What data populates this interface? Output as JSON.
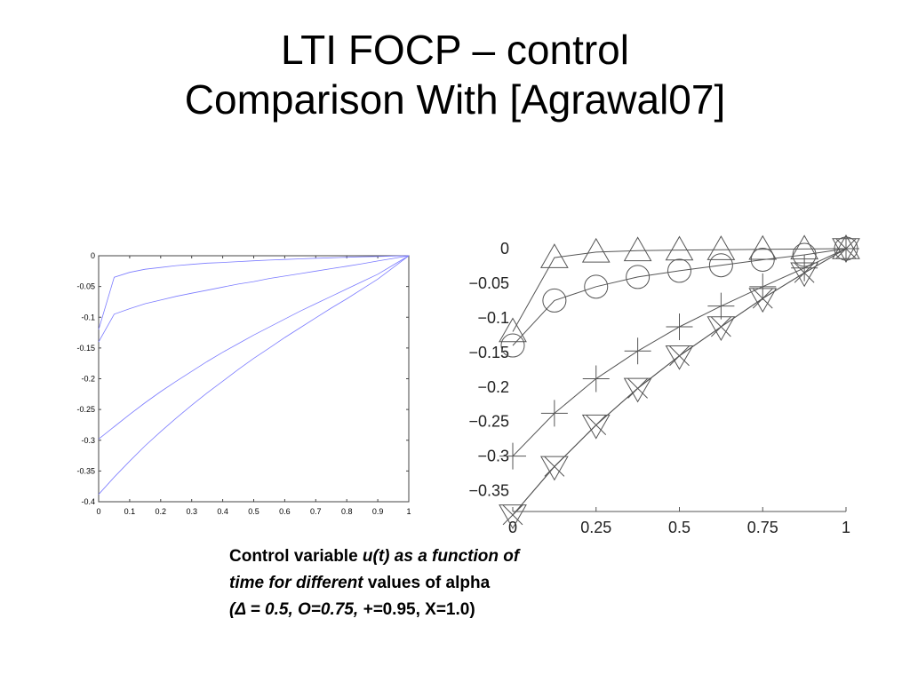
{
  "slide": {
    "title_line1": "LTI FOCP – control",
    "title_line2": "Comparison With [Agrawal07]"
  },
  "caption": {
    "l1_plain": "Control variable ",
    "l1_italic": "u(t) as a function of",
    "l2_italic": "time for different",
    "l3_italic": "(Δ = 0.5,  O=0.75, +=",
    "l2_plain": " values of alpha",
    "l3_plain": "0.95, X=1.0)"
  },
  "chart_data": [
    {
      "type": "line",
      "title": "",
      "xlabel": "",
      "ylabel": "",
      "xlim": [
        0,
        1
      ],
      "ylim": [
        -0.4,
        0
      ],
      "x_ticks": [
        "0",
        "0.1",
        "0.2",
        "0.3",
        "0.4",
        "0.5",
        "0.6",
        "0.7",
        "0.8",
        "0.9",
        "1"
      ],
      "y_ticks": [
        "0",
        "-0.05",
        "-0.1",
        "-0.15",
        "-0.2",
        "-0.25",
        "-0.3",
        "-0.35",
        "-0.4"
      ],
      "line_color": "#7b7bff",
      "grid": false,
      "x": [
        0,
        0.05,
        0.1,
        0.15,
        0.2,
        0.25,
        0.3,
        0.35,
        0.4,
        0.45,
        0.5,
        0.55,
        0.6,
        0.65,
        0.7,
        0.75,
        0.8,
        0.85,
        0.9,
        0.95,
        1
      ],
      "series": [
        {
          "values": [
            -0.12,
            -0.035,
            -0.027,
            -0.022,
            -0.019,
            -0.016,
            -0.014,
            -0.012,
            -0.011,
            -0.0095,
            -0.0082,
            -0.0071,
            -0.006,
            -0.005,
            -0.0041,
            -0.0033,
            -0.0025,
            -0.0018,
            -0.0011,
            -0.0005,
            0
          ]
        },
        {
          "values": [
            -0.14,
            -0.095,
            -0.086,
            -0.078,
            -0.072,
            -0.066,
            -0.061,
            -0.056,
            -0.051,
            -0.046,
            -0.042,
            -0.037,
            -0.033,
            -0.029,
            -0.025,
            -0.021,
            -0.017,
            -0.013,
            -0.0085,
            -0.0043,
            0
          ]
        },
        {
          "values": [
            -0.298,
            -0.278,
            -0.258,
            -0.239,
            -0.221,
            -0.204,
            -0.188,
            -0.172,
            -0.157,
            -0.143,
            -0.129,
            -0.116,
            -0.103,
            -0.09,
            -0.078,
            -0.066,
            -0.054,
            -0.042,
            -0.03,
            -0.015,
            0
          ]
        },
        {
          "values": [
            -0.388,
            -0.36,
            -0.334,
            -0.309,
            -0.286,
            -0.264,
            -0.243,
            -0.223,
            -0.204,
            -0.185,
            -0.167,
            -0.15,
            -0.133,
            -0.117,
            -0.101,
            -0.085,
            -0.07,
            -0.054,
            -0.038,
            -0.019,
            0
          ]
        }
      ]
    },
    {
      "type": "line",
      "title": "",
      "xlabel": "",
      "ylabel": "",
      "xlim": [
        0,
        1
      ],
      "ylim": [
        -0.38,
        0
      ],
      "x_ticks": [
        "0",
        "0.25",
        "0.5",
        "0.75",
        "1"
      ],
      "y_ticks": [
        "0",
        "−0.05",
        "−0.1",
        "−0.15",
        "−0.2",
        "−0.25",
        "−0.3",
        "−0.35"
      ],
      "line_color": "#555555",
      "grid": false,
      "x": [
        0,
        0.125,
        0.25,
        0.375,
        0.5,
        0.625,
        0.75,
        0.875,
        1
      ],
      "series": [
        {
          "marker": "triangle-up",
          "values": [
            -0.12,
            -0.013,
            -0.005,
            -0.003,
            -0.002,
            -0.0015,
            -0.001,
            -0.0005,
            0
          ]
        },
        {
          "marker": "circle",
          "values": [
            -0.14,
            -0.075,
            -0.055,
            -0.041,
            -0.032,
            -0.024,
            -0.016,
            -0.009,
            0
          ]
        },
        {
          "marker": "plus",
          "values": [
            -0.3,
            -0.238,
            -0.188,
            -0.148,
            -0.113,
            -0.083,
            -0.055,
            -0.028,
            0
          ]
        },
        {
          "marker": "triangle-down",
          "values": [
            -0.385,
            -0.315,
            -0.255,
            -0.202,
            -0.155,
            -0.113,
            -0.072,
            -0.035,
            0
          ]
        },
        {
          "marker": "x",
          "values": [
            -0.385,
            -0.315,
            -0.255,
            -0.202,
            -0.155,
            -0.113,
            -0.072,
            -0.035,
            0
          ]
        }
      ]
    }
  ]
}
